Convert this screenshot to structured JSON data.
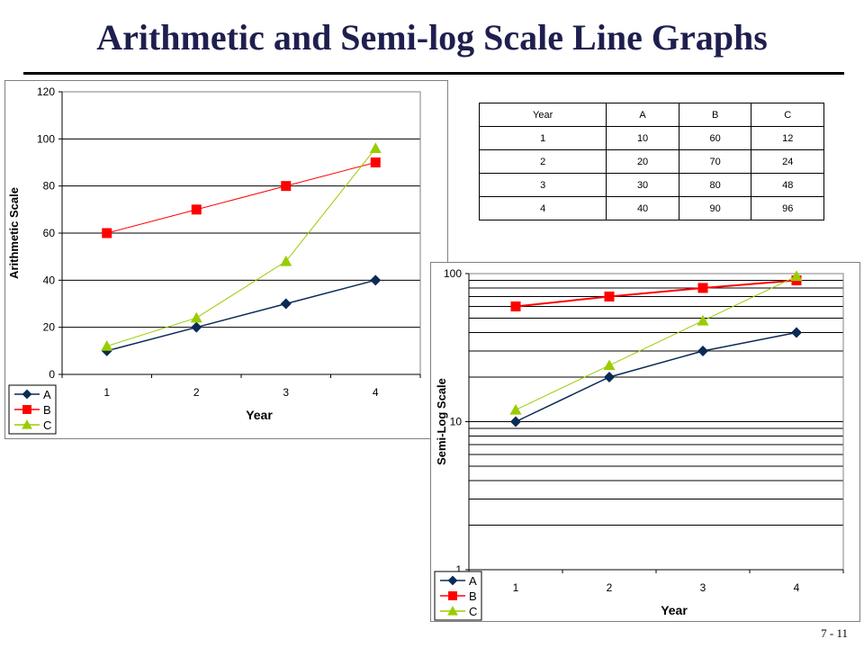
{
  "page": {
    "title": "Arithmetic and Semi-log Scale Line Graphs",
    "page_number": "7 - 11"
  },
  "table": {
    "headers": [
      "Year",
      "A",
      "B",
      "C"
    ],
    "rows": [
      [
        "1",
        "10",
        "60",
        "12"
      ],
      [
        "2",
        "20",
        "70",
        "24"
      ],
      [
        "3",
        "30",
        "80",
        "48"
      ],
      [
        "4",
        "40",
        "90",
        "96"
      ]
    ]
  },
  "colors": {
    "A": "#0b2a55",
    "B": "#ff0000",
    "C": "#99cc00",
    "title": "#1f1f4f"
  },
  "chart_data": [
    {
      "type": "line",
      "scale": "linear",
      "x": [
        1,
        2,
        3,
        4
      ],
      "series": [
        {
          "name": "A",
          "values": [
            10,
            20,
            30,
            40
          ],
          "marker": "diamond"
        },
        {
          "name": "B",
          "values": [
            60,
            70,
            80,
            90
          ],
          "marker": "square"
        },
        {
          "name": "C",
          "values": [
            12,
            24,
            48,
            96
          ],
          "marker": "triangle"
        }
      ],
      "xlabel": "Year",
      "ylabel": "Arithmetic Scale",
      "ylim": [
        0,
        120
      ],
      "yticks": [
        "0",
        "20",
        "40",
        "60",
        "80",
        "100",
        "120"
      ],
      "xticks": [
        "1",
        "2",
        "3",
        "4"
      ],
      "grid": true,
      "legend": "bottom-left"
    },
    {
      "type": "line",
      "scale": "log",
      "x": [
        1,
        2,
        3,
        4
      ],
      "series": [
        {
          "name": "A",
          "values": [
            10,
            20,
            30,
            40
          ],
          "marker": "diamond"
        },
        {
          "name": "B",
          "values": [
            60,
            70,
            80,
            90
          ],
          "marker": "square"
        },
        {
          "name": "C",
          "values": [
            12,
            24,
            48,
            96
          ],
          "marker": "triangle"
        }
      ],
      "xlabel": "Year",
      "ylabel": "Semi-Log Scale",
      "ylim": [
        1,
        100
      ],
      "yticks": [
        "1",
        "10",
        "100"
      ],
      "xticks": [
        "1",
        "2",
        "3",
        "4"
      ],
      "grid": true,
      "legend": "bottom-left"
    }
  ]
}
